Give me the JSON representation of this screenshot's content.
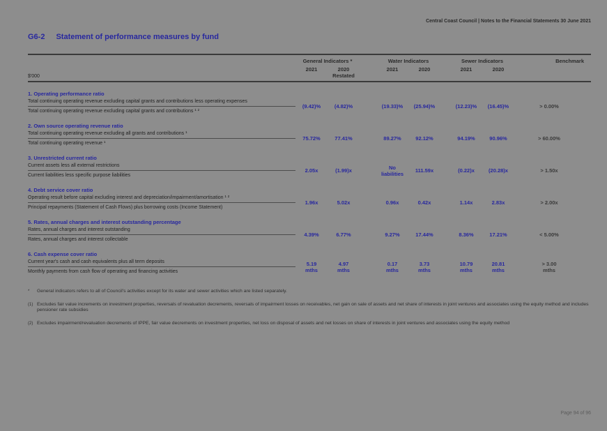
{
  "page": {
    "doc_header": "Central Coast Council | Notes to the Financial Statements 30 June 2021",
    "footer_page": "Page 94 of 96"
  },
  "title": {
    "code": "G6-2",
    "text": "Statement of performance measures by fund"
  },
  "table": {
    "unit_label": "$'000",
    "groups": {
      "general": "General Indicators *",
      "water": "Water Indicators",
      "sewer": "Sewer Indicators",
      "benchmark": "Benchmark"
    },
    "years": {
      "g2021": "2021",
      "g2020": "2020",
      "w2021": "2021",
      "w2020": "2020",
      "s2021": "2021",
      "s2020": "2020"
    },
    "restated": "Restated",
    "rows": [
      {
        "title": "1. Operating performance ratio",
        "numerator": "Total continuing operating revenue excluding capital grants and contributions less operating expenses",
        "denominator": "Total continuing operating revenue excluding capital grants and contributions ¹ ²",
        "values": [
          "(9.42)%",
          "(4.82)%",
          "(19.33)%",
          "(25.94)%",
          "(12.23)%",
          "(16.45)%"
        ],
        "benchmark": "> 0.00%"
      },
      {
        "title": "2. Own source operating revenue ratio",
        "numerator": "Total continuing operating revenue excluding all grants and contributions ¹",
        "denominator": "Total continuing operating revenue ¹",
        "values": [
          "75.72%",
          "77.41%",
          "89.27%",
          "92.12%",
          "94.19%",
          "90.96%"
        ],
        "benchmark": "> 60.00%"
      },
      {
        "title": "3. Unrestricted current ratio",
        "numerator": "Current assets less all external restrictions",
        "denominator": "Current liabilities less specific purpose liabilities",
        "values": [
          "2.05x",
          "(1.99)x",
          "No\nliabilities",
          "111.59x",
          "(0.22)x",
          "(20.28)x"
        ],
        "benchmark": "> 1.50x"
      },
      {
        "title": "4. Debt service cover ratio",
        "numerator": "Operating result before capital excluding interest and depreciation/impairment/amortisation ¹ ²",
        "denominator": "Principal repayments (Statement of Cash Flows) plus borrowing costs (Income Statement)",
        "values": [
          "1.96x",
          "5.02x",
          "0.96x",
          "0.42x",
          "1.14x",
          "2.83x"
        ],
        "benchmark": "> 2.00x"
      },
      {
        "title": "5. Rates, annual charges and interest outstanding percentage",
        "numerator": "Rates, annual charges and interest outstanding",
        "denominator": "Rates, annual charges and interest collectable",
        "values": [
          "4.39%",
          "6.77%",
          "9.27%",
          "17.44%",
          "8.36%",
          "17.21%"
        ],
        "benchmark": "< 5.00%"
      },
      {
        "title": "6. Cash expense cover ratio",
        "numerator": "Current year's cash and cash equivalents plus all term deposits",
        "denominator": "Monthly payments from cash flow of operating and financing activities",
        "values": [
          "5.19\nmths",
          "4.97\nmths",
          "0.17\nmths",
          "3.73\nmths",
          "10.79\nmths",
          "20.81\nmths"
        ],
        "benchmark": "> 3.00\nmths"
      }
    ]
  },
  "footnotes": [
    {
      "marker": "*",
      "text": "General indicators refers to all of Council's activities except for its water and sewer activities which are listed separately."
    },
    {
      "marker": "(1)",
      "text": "Excludes fair value increments on investment properties, reversals of revaluation decrements, reversals of impairment losses on receivables, net gain on sale of assets and net share of interests in joint ventures and associates using the equity method and includes pensioner rate subsidies"
    },
    {
      "marker": "(2)",
      "text": "Excludes impairment/revaluation decrements of IPPE, fair value decrements on investment properties, net loss on disposal of assets and net losses on share of interests in joint ventures and associates using the equity method"
    }
  ]
}
